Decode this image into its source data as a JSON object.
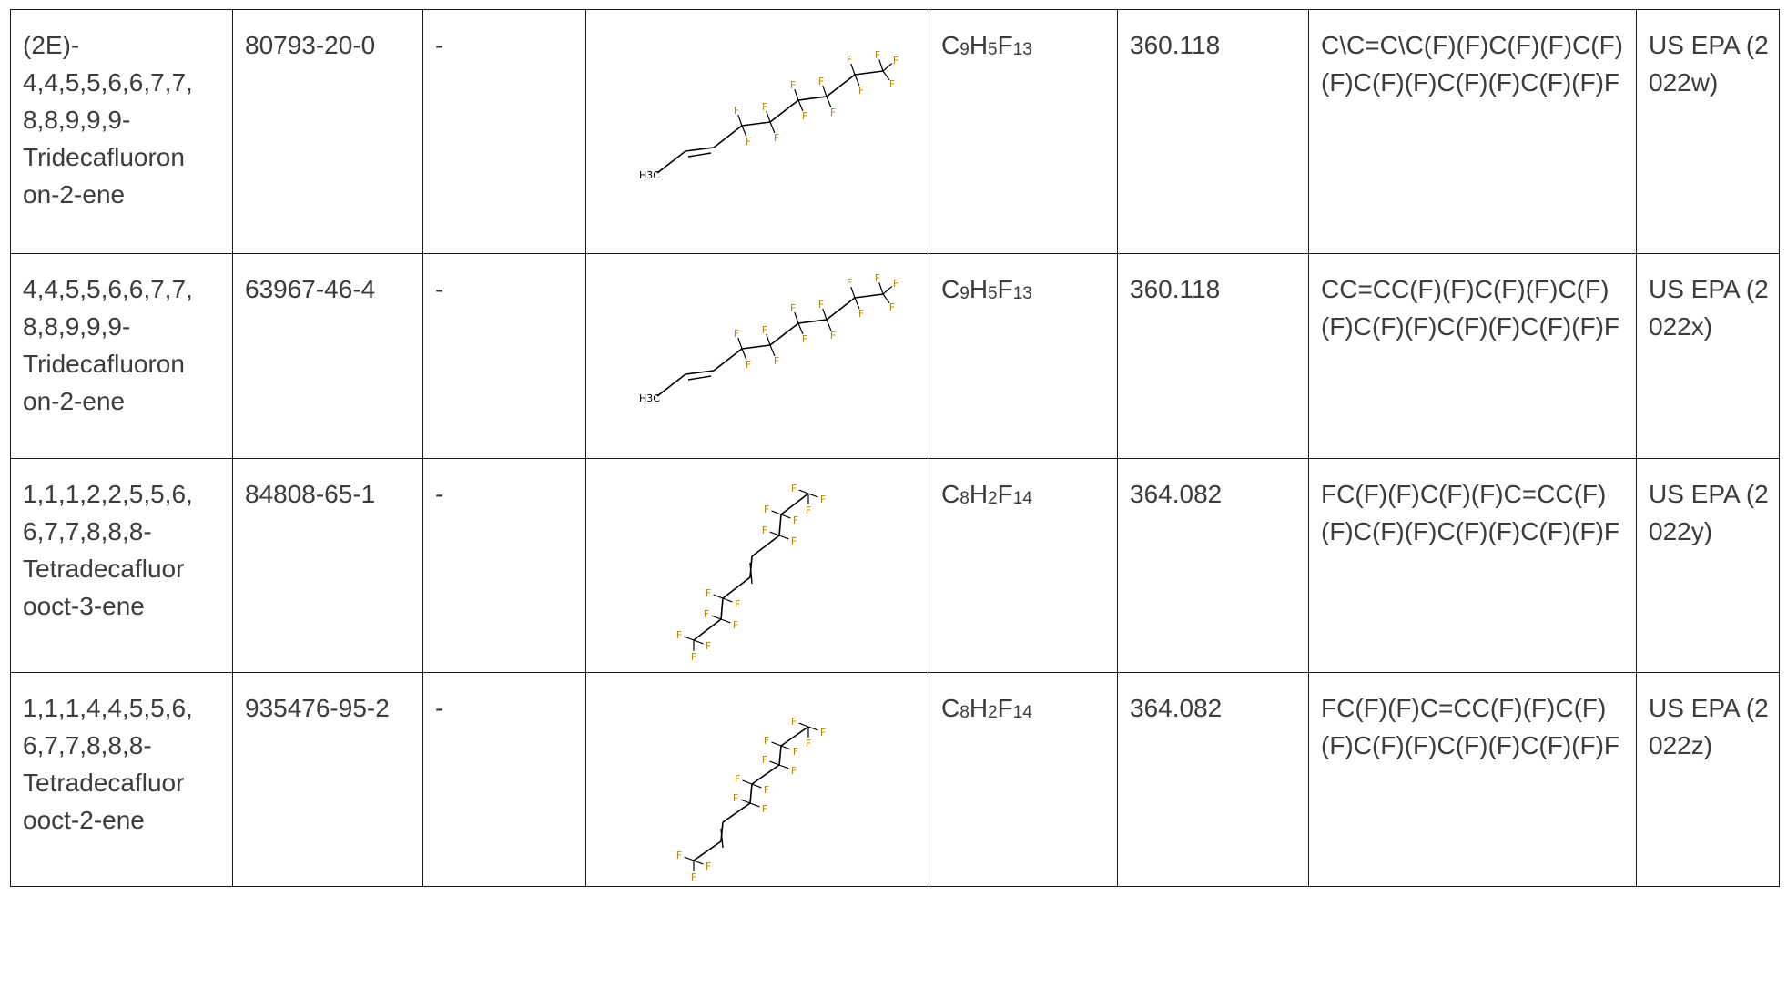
{
  "rows": [
    {
      "name_lines": [
        "(2E)-",
        "4,4,5,5,6,6,7,7,",
        "8,8,9,9,9-",
        "Tridecafluoron",
        "on-2-ene"
      ],
      "cas": "80793-20-0",
      "synonym": "-",
      "formula": {
        "parts": [
          {
            "t": "C",
            "s": "9"
          },
          {
            "t": "H",
            "s": "5"
          },
          {
            "t": "F",
            "s": "13"
          }
        ]
      },
      "mw": "360.118",
      "smiles": "C\\C=C\\C(F)(F)C(F)(F)C(F)(F)C(F)(F)C(F)(F)C(F)(F)F",
      "source": "US EPA (2022w)",
      "structure_label": "H3C"
    },
    {
      "name_lines": [
        "4,4,5,5,6,6,7,7,",
        "8,8,9,9,9-",
        "Tridecafluoron",
        "on-2-ene"
      ],
      "cas": "63967-46-4",
      "synonym": "-",
      "formula": {
        "parts": [
          {
            "t": "C",
            "s": "9"
          },
          {
            "t": "H",
            "s": "5"
          },
          {
            "t": "F",
            "s": "13"
          }
        ]
      },
      "mw": "360.118",
      "smiles": "CC=CC(F)(F)C(F)(F)C(F)(F)C(F)(F)C(F)(F)C(F)(F)F",
      "source": "US EPA (2022x)",
      "structure_label": "H3C"
    },
    {
      "name_lines": [
        "1,1,1,2,2,5,5,6,",
        "6,7,7,8,8,8-",
        "Tetradecafluor",
        "ooct-3-ene"
      ],
      "cas": "84808-65-1",
      "synonym": "-",
      "formula": {
        "parts": [
          {
            "t": "C",
            "s": "8"
          },
          {
            "t": "H",
            "s": "2"
          },
          {
            "t": "F",
            "s": "14"
          }
        ]
      },
      "mw": "364.082",
      "smiles": "FC(F)(F)C(F)(F)C=CC(F)(F)C(F)(F)C(F)(F)C(F)(F)F",
      "source": "US EPA (2022y)",
      "structure_label": ""
    },
    {
      "name_lines": [
        "1,1,1,4,4,5,5,6,",
        "6,7,7,8,8,8-",
        "Tetradecafluor",
        "ooct-2-ene"
      ],
      "cas": "935476-95-2",
      "synonym": "-",
      "formula": {
        "parts": [
          {
            "t": "C",
            "s": "8"
          },
          {
            "t": "H",
            "s": "2"
          },
          {
            "t": "F",
            "s": "14"
          }
        ]
      },
      "mw": "364.082",
      "smiles": "FC(F)(F)C=CC(F)(F)C(F)(F)C(F)(F)C(F)(F)C(F)(F)F",
      "source": "US EPA (2022z)",
      "structure_label": ""
    }
  ],
  "atom_label_text": "F",
  "colors": {
    "fluorine": "#b8860b",
    "bond": "#000000",
    "text": "#3c3c3c",
    "border": "#1a1a1a"
  }
}
